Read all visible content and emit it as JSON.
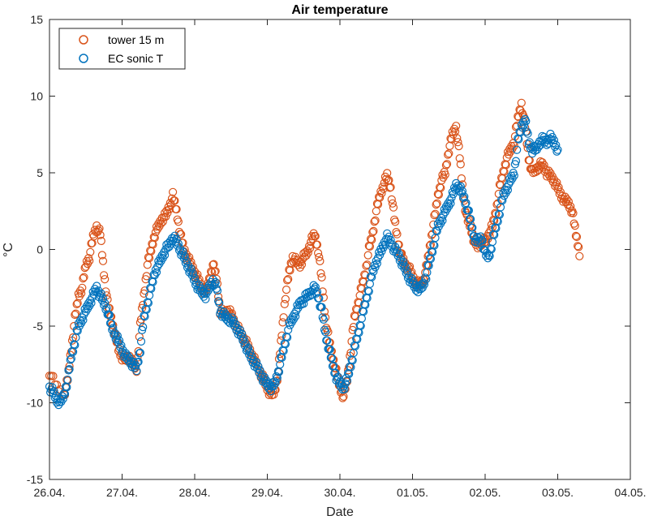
{
  "chart_data": {
    "type": "scatter",
    "title": "Air temperature",
    "xlabel": "Date",
    "ylabel": "°C",
    "x_unit": "date",
    "xlim": [
      "26.04.",
      "04.05."
    ],
    "ylim": [
      -15,
      15
    ],
    "x_tick_labels": [
      "26.04.",
      "27.04.",
      "28.04.",
      "29.04.",
      "30.04.",
      "01.05.",
      "02.05.",
      "03.05.",
      "04.05."
    ],
    "y_ticks": [
      -15,
      -10,
      -5,
      0,
      5,
      10,
      15
    ],
    "grid": false,
    "legend_position": "top-left",
    "series": [
      {
        "name": "tower 15 m",
        "color": "#D95319",
        "marker": "circle-open",
        "points": [
          [
            26.0,
            -8.0
          ],
          [
            26.1,
            -9.0
          ],
          [
            26.2,
            -9.5
          ],
          [
            26.25,
            -8.5
          ],
          [
            26.3,
            -6.5
          ],
          [
            26.35,
            -4.5
          ],
          [
            26.4,
            -3.0
          ],
          [
            26.45,
            -2.5
          ],
          [
            26.5,
            -1.0
          ],
          [
            26.55,
            -0.5
          ],
          [
            26.6,
            0.8
          ],
          [
            26.65,
            1.5
          ],
          [
            26.7,
            1.0
          ],
          [
            26.75,
            -1.5
          ],
          [
            26.8,
            -3.5
          ],
          [
            26.85,
            -4.5
          ],
          [
            26.9,
            -5.5
          ],
          [
            26.95,
            -6.5
          ],
          [
            27.0,
            -7.0
          ],
          [
            27.05,
            -7.2
          ],
          [
            27.1,
            -7.0
          ],
          [
            27.15,
            -7.5
          ],
          [
            27.2,
            -7.8
          ],
          [
            27.25,
            -5.0
          ],
          [
            27.3,
            -3.0
          ],
          [
            27.35,
            -1.0
          ],
          [
            27.4,
            0.0
          ],
          [
            27.45,
            1.0
          ],
          [
            27.5,
            1.5
          ],
          [
            27.55,
            2.0
          ],
          [
            27.6,
            2.2
          ],
          [
            27.65,
            2.8
          ],
          [
            27.7,
            3.5
          ],
          [
            27.75,
            2.5
          ],
          [
            27.8,
            1.0
          ],
          [
            27.85,
            0.0
          ],
          [
            27.9,
            -0.5
          ],
          [
            27.95,
            -1.0
          ],
          [
            28.0,
            -1.5
          ],
          [
            28.05,
            -2.0
          ],
          [
            28.1,
            -2.5
          ],
          [
            28.15,
            -2.8
          ],
          [
            28.2,
            -2.0
          ],
          [
            28.25,
            -1.0
          ],
          [
            28.3,
            -1.8
          ],
          [
            28.35,
            -4.0
          ],
          [
            28.4,
            -4.2
          ],
          [
            28.45,
            -4.0
          ],
          [
            28.5,
            -4.2
          ],
          [
            28.55,
            -4.8
          ],
          [
            28.6,
            -5.2
          ],
          [
            28.65,
            -5.6
          ],
          [
            28.7,
            -6.0
          ],
          [
            28.75,
            -6.5
          ],
          [
            28.8,
            -7.0
          ],
          [
            28.85,
            -7.5
          ],
          [
            28.9,
            -8.0
          ],
          [
            28.95,
            -8.5
          ],
          [
            29.0,
            -9.0
          ],
          [
            29.05,
            -9.5
          ],
          [
            29.1,
            -9.3
          ],
          [
            29.15,
            -8.0
          ],
          [
            29.2,
            -5.5
          ],
          [
            29.25,
            -3.0
          ],
          [
            29.3,
            -1.5
          ],
          [
            29.35,
            -0.5
          ],
          [
            29.4,
            -0.8
          ],
          [
            29.45,
            -1.0
          ],
          [
            29.5,
            -0.5
          ],
          [
            29.55,
            -0.2
          ],
          [
            29.6,
            0.5
          ],
          [
            29.65,
            1.0
          ],
          [
            29.7,
            0.0
          ],
          [
            29.75,
            -2.0
          ],
          [
            29.8,
            -4.5
          ],
          [
            29.85,
            -6.0
          ],
          [
            29.9,
            -7.0
          ],
          [
            29.95,
            -8.0
          ],
          [
            30.0,
            -9.0
          ],
          [
            30.05,
            -9.6
          ],
          [
            30.1,
            -8.5
          ],
          [
            30.15,
            -6.5
          ],
          [
            30.2,
            -4.5
          ],
          [
            30.25,
            -3.5
          ],
          [
            30.3,
            -2.5
          ],
          [
            30.35,
            -1.5
          ],
          [
            30.4,
            0.0
          ],
          [
            30.45,
            1.0
          ],
          [
            30.5,
            2.5
          ],
          [
            30.55,
            3.5
          ],
          [
            30.6,
            4.2
          ],
          [
            30.65,
            4.8
          ],
          [
            30.7,
            4.0
          ],
          [
            30.75,
            2.0
          ],
          [
            30.8,
            0.5
          ],
          [
            30.85,
            -0.5
          ],
          [
            30.9,
            -1.0
          ],
          [
            30.95,
            -1.2
          ],
          [
            31.0,
            -1.8
          ],
          [
            31.05,
            -2.2
          ],
          [
            31.1,
            -2.3
          ],
          [
            31.15,
            -2.0
          ],
          [
            31.2,
            -1.0
          ],
          [
            31.25,
            0.5
          ],
          [
            31.3,
            2.0
          ],
          [
            31.35,
            3.5
          ],
          [
            31.4,
            4.5
          ],
          [
            31.45,
            5.0
          ],
          [
            31.5,
            6.5
          ],
          [
            31.55,
            7.5
          ],
          [
            31.6,
            8.0
          ],
          [
            31.65,
            6.0
          ],
          [
            31.7,
            3.5
          ],
          [
            31.75,
            2.0
          ],
          [
            31.8,
            1.5
          ],
          [
            31.85,
            0.5
          ],
          [
            31.9,
            0.2
          ],
          [
            31.95,
            0.5
          ],
          [
            32.0,
            0.5
          ],
          [
            32.05,
            1.0
          ],
          [
            32.1,
            1.5
          ],
          [
            32.15,
            2.5
          ],
          [
            32.2,
            4.0
          ],
          [
            32.25,
            5.0
          ],
          [
            32.3,
            6.0
          ],
          [
            32.35,
            6.5
          ],
          [
            32.4,
            7.0
          ],
          [
            32.45,
            8.5
          ],
          [
            32.5,
            9.5
          ],
          [
            32.55,
            8.0
          ],
          [
            32.6,
            6.0
          ],
          [
            32.65,
            5.0
          ],
          [
            32.7,
            5.2
          ],
          [
            32.75,
            5.5
          ],
          [
            32.8,
            5.5
          ],
          [
            32.85,
            5.0
          ],
          [
            32.9,
            4.8
          ],
          [
            32.95,
            4.5
          ],
          [
            33.0,
            4.0
          ],
          [
            33.05,
            3.5
          ],
          [
            33.1,
            3.2
          ],
          [
            33.15,
            3.0
          ],
          [
            33.2,
            2.5
          ],
          [
            33.25,
            1.0
          ],
          [
            33.3,
            -0.2
          ]
        ]
      },
      {
        "name": "EC sonic T",
        "color": "#0072BD",
        "marker": "circle-open",
        "points": [
          [
            26.0,
            -9.0
          ],
          [
            26.05,
            -9.3
          ],
          [
            26.1,
            -9.8
          ],
          [
            26.15,
            -10.0
          ],
          [
            26.2,
            -9.5
          ],
          [
            26.25,
            -8.5
          ],
          [
            26.3,
            -7.0
          ],
          [
            26.35,
            -6.0
          ],
          [
            26.4,
            -5.0
          ],
          [
            26.45,
            -4.5
          ],
          [
            26.5,
            -4.0
          ],
          [
            26.55,
            -3.5
          ],
          [
            26.6,
            -3.0
          ],
          [
            26.65,
            -2.5
          ],
          [
            26.7,
            -3.0
          ],
          [
            26.75,
            -3.5
          ],
          [
            26.8,
            -4.0
          ],
          [
            26.85,
            -5.0
          ],
          [
            26.9,
            -5.5
          ],
          [
            26.95,
            -6.0
          ],
          [
            27.0,
            -6.5
          ],
          [
            27.05,
            -7.0
          ],
          [
            27.1,
            -7.2
          ],
          [
            27.15,
            -7.5
          ],
          [
            27.2,
            -7.8
          ],
          [
            27.25,
            -6.5
          ],
          [
            27.3,
            -4.5
          ],
          [
            27.35,
            -3.5
          ],
          [
            27.4,
            -2.5
          ],
          [
            27.45,
            -1.5
          ],
          [
            27.5,
            -1.0
          ],
          [
            27.55,
            -0.5
          ],
          [
            27.6,
            0.0
          ],
          [
            27.65,
            0.3
          ],
          [
            27.7,
            0.8
          ],
          [
            27.75,
            0.5
          ],
          [
            27.8,
            0.0
          ],
          [
            27.85,
            -0.5
          ],
          [
            27.9,
            -1.0
          ],
          [
            27.95,
            -1.5
          ],
          [
            28.0,
            -2.0
          ],
          [
            28.05,
            -2.5
          ],
          [
            28.1,
            -2.8
          ],
          [
            28.15,
            -3.0
          ],
          [
            28.2,
            -2.5
          ],
          [
            28.25,
            -2.0
          ],
          [
            28.3,
            -2.5
          ],
          [
            28.35,
            -4.0
          ],
          [
            28.4,
            -4.3
          ],
          [
            28.45,
            -4.5
          ],
          [
            28.5,
            -4.6
          ],
          [
            28.55,
            -4.9
          ],
          [
            28.6,
            -5.3
          ],
          [
            28.65,
            -5.7
          ],
          [
            28.7,
            -6.2
          ],
          [
            28.75,
            -6.8
          ],
          [
            28.8,
            -7.2
          ],
          [
            28.85,
            -7.6
          ],
          [
            28.9,
            -8.0
          ],
          [
            28.95,
            -8.5
          ],
          [
            29.0,
            -8.8
          ],
          [
            29.05,
            -9.0
          ],
          [
            29.1,
            -8.8
          ],
          [
            29.15,
            -8.0
          ],
          [
            29.2,
            -7.0
          ],
          [
            29.25,
            -6.0
          ],
          [
            29.3,
            -5.0
          ],
          [
            29.35,
            -4.5
          ],
          [
            29.4,
            -4.0
          ],
          [
            29.45,
            -3.5
          ],
          [
            29.5,
            -3.3
          ],
          [
            29.55,
            -3.0
          ],
          [
            29.6,
            -2.8
          ],
          [
            29.65,
            -2.5
          ],
          [
            29.7,
            -3.0
          ],
          [
            29.75,
            -4.0
          ],
          [
            29.8,
            -5.5
          ],
          [
            29.85,
            -6.5
          ],
          [
            29.9,
            -7.5
          ],
          [
            29.95,
            -8.3
          ],
          [
            30.0,
            -8.8
          ],
          [
            30.05,
            -9.0
          ],
          [
            30.1,
            -8.5
          ],
          [
            30.15,
            -7.5
          ],
          [
            30.2,
            -6.5
          ],
          [
            30.25,
            -5.5
          ],
          [
            30.3,
            -4.5
          ],
          [
            30.35,
            -3.5
          ],
          [
            30.4,
            -2.5
          ],
          [
            30.45,
            -1.5
          ],
          [
            30.5,
            -0.8
          ],
          [
            30.55,
            -0.3
          ],
          [
            30.6,
            0.3
          ],
          [
            30.65,
            0.8
          ],
          [
            30.7,
            0.5
          ],
          [
            30.75,
            0.0
          ],
          [
            30.8,
            -0.3
          ],
          [
            30.85,
            -0.8
          ],
          [
            30.9,
            -1.3
          ],
          [
            30.95,
            -1.8
          ],
          [
            31.0,
            -2.2
          ],
          [
            31.05,
            -2.5
          ],
          [
            31.1,
            -2.6
          ],
          [
            31.15,
            -2.3
          ],
          [
            31.2,
            -1.5
          ],
          [
            31.25,
            -0.5
          ],
          [
            31.3,
            0.5
          ],
          [
            31.35,
            1.5
          ],
          [
            31.4,
            2.0
          ],
          [
            31.45,
            2.5
          ],
          [
            31.5,
            3.0
          ],
          [
            31.55,
            3.5
          ],
          [
            31.6,
            4.2
          ],
          [
            31.65,
            4.0
          ],
          [
            31.7,
            3.5
          ],
          [
            31.75,
            2.8
          ],
          [
            31.8,
            1.8
          ],
          [
            31.85,
            0.8
          ],
          [
            31.9,
            0.5
          ],
          [
            31.95,
            0.8
          ],
          [
            32.0,
            -0.3
          ],
          [
            32.05,
            -0.5
          ],
          [
            32.1,
            0.5
          ],
          [
            32.15,
            1.5
          ],
          [
            32.2,
            2.5
          ],
          [
            32.25,
            3.5
          ],
          [
            32.3,
            4.0
          ],
          [
            32.35,
            4.5
          ],
          [
            32.4,
            5.0
          ],
          [
            32.45,
            7.0
          ],
          [
            32.5,
            8.0
          ],
          [
            32.55,
            8.5
          ],
          [
            32.6,
            7.0
          ],
          [
            32.65,
            6.5
          ],
          [
            32.7,
            6.5
          ],
          [
            32.75,
            7.0
          ],
          [
            32.8,
            7.2
          ],
          [
            32.85,
            7.0
          ],
          [
            32.9,
            7.3
          ],
          [
            32.95,
            7.0
          ],
          [
            33.0,
            6.5
          ]
        ]
      }
    ]
  }
}
